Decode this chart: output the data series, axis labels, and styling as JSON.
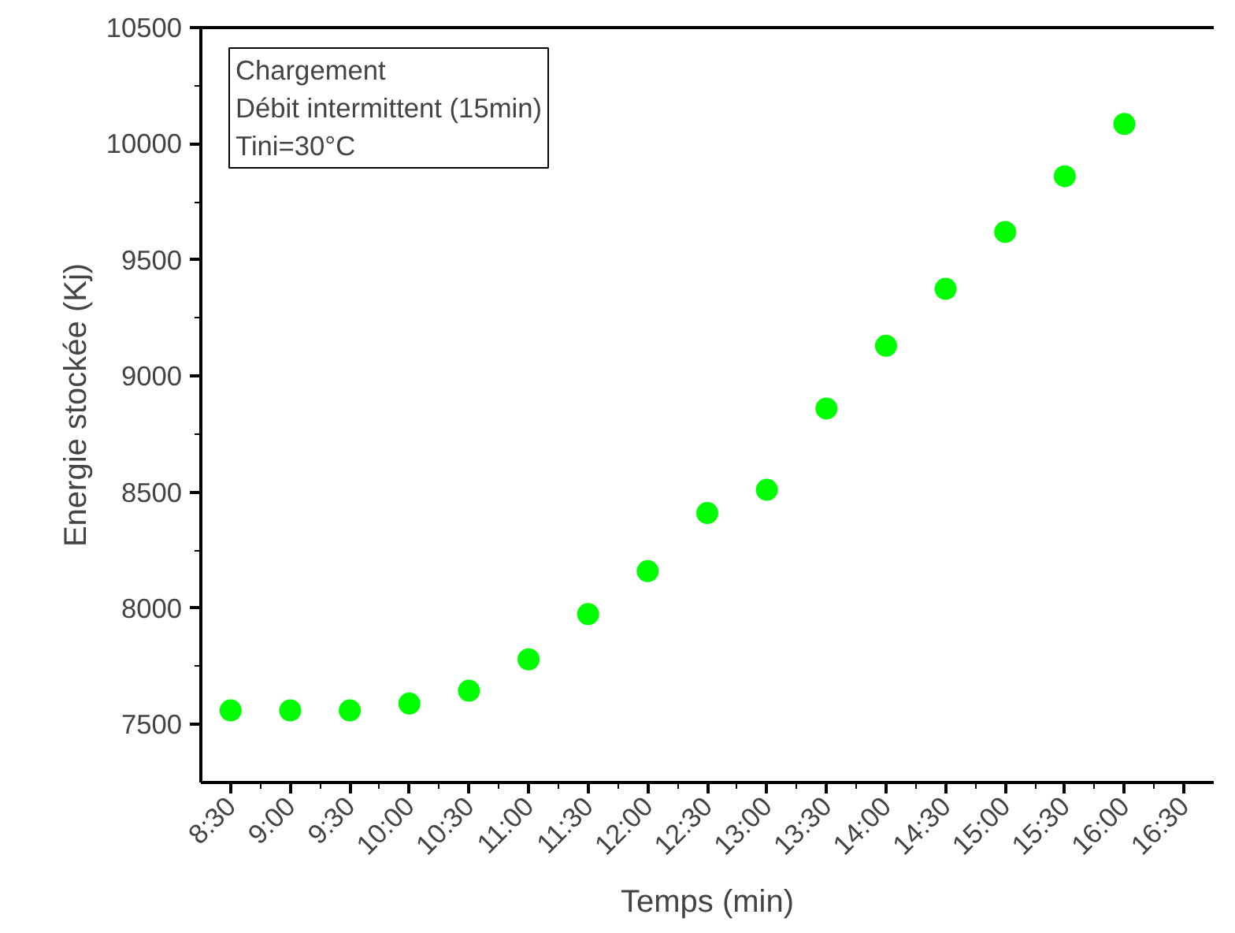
{
  "chart_data": {
    "type": "scatter",
    "xlabel": "Temps (min)",
    "ylabel": "Energie stockée (Kj)",
    "annotations": [
      "Chargement",
      "Débit intermittent (15min)",
      "Tini=30°C"
    ],
    "x": [
      8.5,
      9.0,
      9.5,
      10.0,
      10.5,
      11.0,
      11.5,
      12.0,
      12.5,
      13.0,
      13.5,
      14.0,
      14.5,
      15.0,
      15.5,
      16.0
    ],
    "series": [
      {
        "color": "#00ff00",
        "values": [
          7560,
          7560,
          7560,
          7590,
          7645,
          7780,
          7975,
          8160,
          8410,
          8510,
          8860,
          9130,
          9375,
          9620,
          9860,
          10085
        ]
      }
    ],
    "marker": "circle",
    "grid": false,
    "xlim": [
      8.25,
      16.75
    ],
    "xticks": [
      {
        "value": 8.5,
        "label": "8:30"
      },
      {
        "value": 9.0,
        "label": "9:00"
      },
      {
        "value": 9.5,
        "label": "9:30"
      },
      {
        "value": 10.0,
        "label": "10:00"
      },
      {
        "value": 10.5,
        "label": "10:30"
      },
      {
        "value": 11.0,
        "label": "11:00"
      },
      {
        "value": 11.5,
        "label": "11:30"
      },
      {
        "value": 12.0,
        "label": "12:00"
      },
      {
        "value": 12.5,
        "label": "12:30"
      },
      {
        "value": 13.0,
        "label": "13:00"
      },
      {
        "value": 13.5,
        "label": "13:30"
      },
      {
        "value": 14.0,
        "label": "14:00"
      },
      {
        "value": 14.5,
        "label": "14:30"
      },
      {
        "value": 15.0,
        "label": "15:00"
      },
      {
        "value": 15.5,
        "label": "15:30"
      },
      {
        "value": 16.0,
        "label": "16:00"
      },
      {
        "value": 16.5,
        "label": "16:30"
      },
      {
        "value": 8.75,
        "label": null
      },
      {
        "value": 9.25,
        "label": null
      },
      {
        "value": 9.75,
        "label": null
      },
      {
        "value": 10.25,
        "label": null
      },
      {
        "value": 10.75,
        "label": null
      },
      {
        "value": 11.25,
        "label": null
      },
      {
        "value": 11.75,
        "label": null
      },
      {
        "value": 12.25,
        "label": null
      },
      {
        "value": 12.75,
        "label": null
      },
      {
        "value": 13.25,
        "label": null
      },
      {
        "value": 13.75,
        "label": null
      },
      {
        "value": 14.25,
        "label": null
      },
      {
        "value": 14.75,
        "label": null
      },
      {
        "value": 15.25,
        "label": null
      },
      {
        "value": 15.75,
        "label": null
      },
      {
        "value": 16.25,
        "label": null
      }
    ],
    "ylim": [
      7250,
      10500
    ],
    "yticks": [
      7500,
      8000,
      8500,
      9000,
      9500,
      10000,
      10500,
      {
        "value": 7750,
        "label": null
      },
      {
        "value": 8250,
        "label": null
      },
      {
        "value": 8750,
        "label": null
      },
      {
        "value": 9250,
        "label": null
      },
      {
        "value": 9750,
        "label": null
      },
      {
        "value": 10250,
        "label": null
      }
    ]
  }
}
